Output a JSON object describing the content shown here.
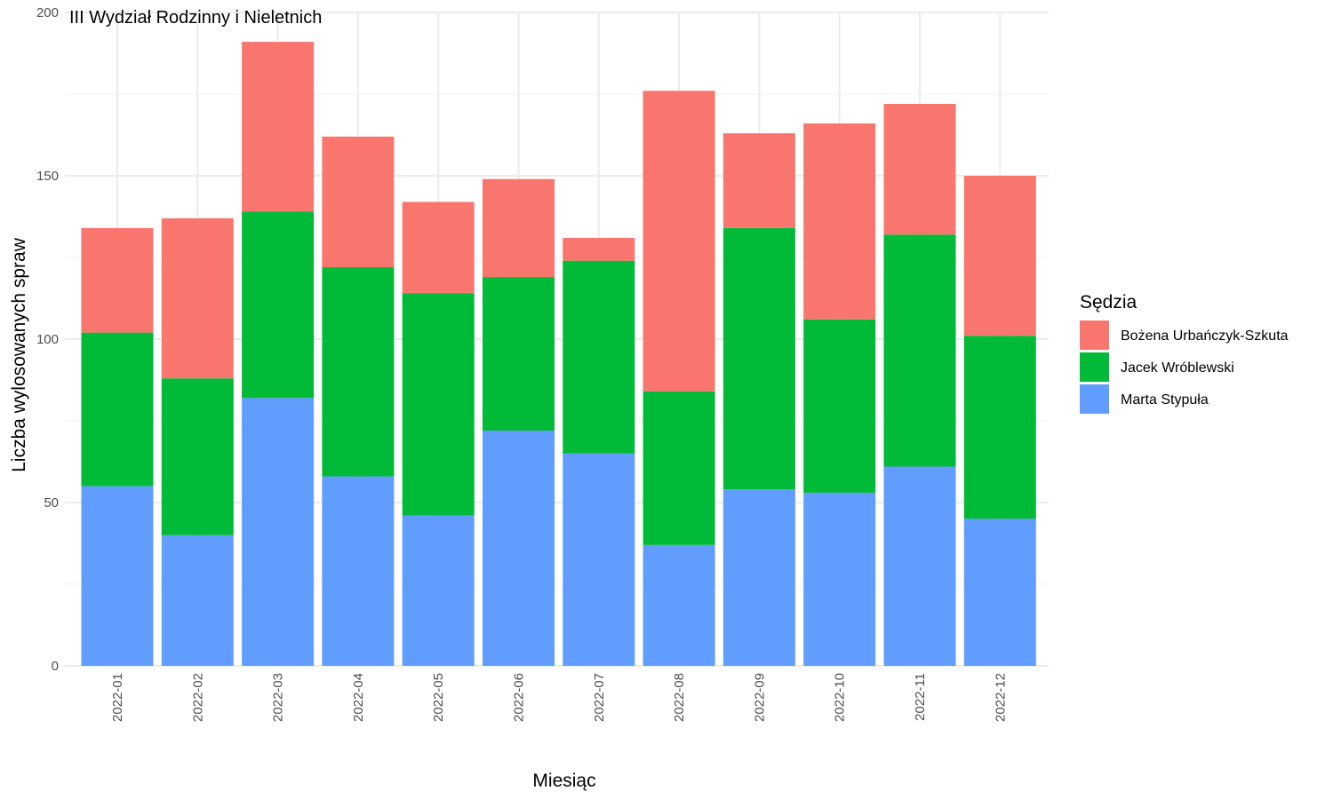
{
  "chart_data": {
    "type": "bar",
    "stacked": true,
    "title": "III Wydział Rodzinny i Nieletnich",
    "xlabel": "Miesiąc",
    "ylabel": "Liczba wylosowanych spraw",
    "ylim": [
      0,
      200
    ],
    "yticks": [
      0,
      50,
      100,
      150,
      200
    ],
    "grid": true,
    "legend_title": "Sędzia",
    "legend_position": "right",
    "categories": [
      "2022-01",
      "2022-02",
      "2022-03",
      "2022-04",
      "2022-05",
      "2022-06",
      "2022-07",
      "2022-08",
      "2022-09",
      "2022-10",
      "2022-11",
      "2022-12"
    ],
    "series": [
      {
        "name": "Marta Stypuła",
        "color": "#619CFF",
        "values": [
          55,
          40,
          82,
          58,
          46,
          72,
          65,
          37,
          54,
          53,
          61,
          45
        ]
      },
      {
        "name": "Jacek Wróblewski",
        "color": "#00BA38",
        "values": [
          47,
          48,
          57,
          64,
          68,
          47,
          59,
          47,
          80,
          53,
          71,
          56
        ]
      },
      {
        "name": "Bożena Urbańczyk-Szkuta",
        "color": "#F8766D",
        "values": [
          32,
          49,
          52,
          40,
          28,
          30,
          7,
          92,
          29,
          60,
          40,
          49
        ]
      }
    ],
    "legend_order": [
      "Bożena Urbańczyk-Szkuta",
      "Jacek Wróblewski",
      "Marta Stypuła"
    ]
  }
}
